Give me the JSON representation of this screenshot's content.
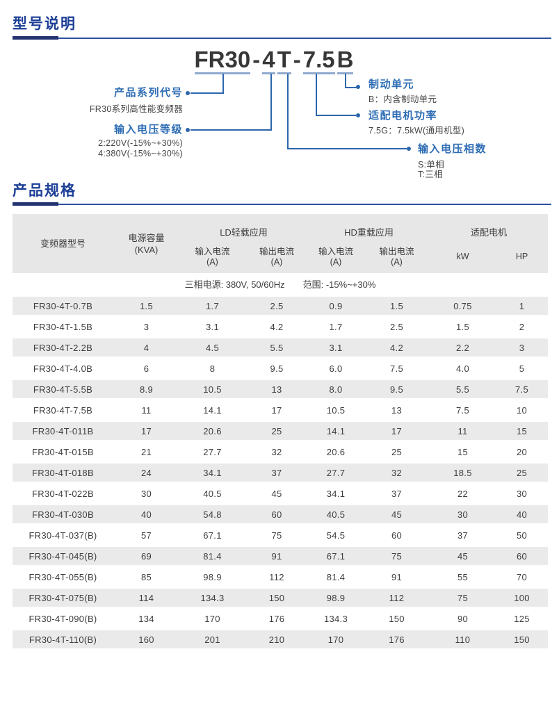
{
  "sections": {
    "model_desc_title": "型号说明",
    "specs_title": "产品规格"
  },
  "model_diagram": {
    "model_number": "FR30-4T-7.5B",
    "model_parts": [
      {
        "t": "FR30",
        "u": true
      },
      {
        "t": "-",
        "u": false
      },
      {
        "t": "4",
        "u": true
      },
      {
        "t": "T",
        "u": true
      },
      {
        "t": "-",
        "u": false
      },
      {
        "t": "7.5",
        "u": true
      },
      {
        "t": "B",
        "u": true
      }
    ],
    "series": {
      "title": "产品系列代号",
      "desc": "FR30系列高性能变频器"
    },
    "voltage": {
      "title": "输入电压等级",
      "desc1": "2:220V(-15%~+30%)",
      "desc2": "4:380V(-15%~+30%)"
    },
    "brake": {
      "title": "制动单元",
      "desc": "B：内含制动单元"
    },
    "power": {
      "title": "适配电机功率",
      "desc": "7.5G：7.5kW(通用机型)"
    },
    "phase": {
      "title": "输入电压相数",
      "desc1": "S:单相",
      "desc2": "T:三相"
    }
  },
  "table": {
    "headers": {
      "model": "变频器型号",
      "capacity_line1": "电源容量",
      "capacity_line2": "(KVA)",
      "ld_group": "LD轻载应用",
      "hd_group": "HD重载应用",
      "motor_group": "适配电机",
      "input_current": "输入电流",
      "output_current": "输出电流",
      "amp": "(A)",
      "kw": "kW",
      "hp": "HP"
    },
    "note": {
      "left": "三相电源: 380V, 50/60Hz",
      "right": "范围: -15%~+30%"
    },
    "rows": [
      [
        "FR30-4T-0.7B",
        "1.5",
        "1.7",
        "2.5",
        "0.9",
        "1.5",
        "0.75",
        "1"
      ],
      [
        "FR30-4T-1.5B",
        "3",
        "3.1",
        "4.2",
        "1.7",
        "2.5",
        "1.5",
        "2"
      ],
      [
        "FR30-4T-2.2B",
        "4",
        "4.5",
        "5.5",
        "3.1",
        "4.2",
        "2.2",
        "3"
      ],
      [
        "FR30-4T-4.0B",
        "6",
        "8",
        "9.5",
        "6.0",
        "7.5",
        "4.0",
        "5"
      ],
      [
        "FR30-4T-5.5B",
        "8.9",
        "10.5",
        "13",
        "8.0",
        "9.5",
        "5.5",
        "7.5"
      ],
      [
        "FR30-4T-7.5B",
        "11",
        "14.1",
        "17",
        "10.5",
        "13",
        "7.5",
        "10"
      ],
      [
        "FR30-4T-011B",
        "17",
        "20.6",
        "25",
        "14.1",
        "17",
        "11",
        "15"
      ],
      [
        "FR30-4T-015B",
        "21",
        "27.7",
        "32",
        "20.6",
        "25",
        "15",
        "20"
      ],
      [
        "FR30-4T-018B",
        "24",
        "34.1",
        "37",
        "27.7",
        "32",
        "18.5",
        "25"
      ],
      [
        "FR30-4T-022B",
        "30",
        "40.5",
        "45",
        "34.1",
        "37",
        "22",
        "30"
      ],
      [
        "FR30-4T-030B",
        "40",
        "54.8",
        "60",
        "40.5",
        "45",
        "30",
        "40"
      ],
      [
        "FR30-4T-037(B)",
        "57",
        "67.1",
        "75",
        "54.5",
        "60",
        "37",
        "50"
      ],
      [
        "FR30-4T-045(B)",
        "69",
        "81.4",
        "91",
        "67.1",
        "75",
        "45",
        "60"
      ],
      [
        "FR30-4T-055(B)",
        "85",
        "98.9",
        "112",
        "81.4",
        "91",
        "55",
        "70"
      ],
      [
        "FR30-4T-075(B)",
        "114",
        "134.3",
        "150",
        "98.9",
        "112",
        "75",
        "100"
      ],
      [
        "FR30-4T-090(B)",
        "134",
        "170",
        "176",
        "134.3",
        "150",
        "90",
        "125"
      ],
      [
        "FR30-4T-110(B)",
        "160",
        "201",
        "210",
        "170",
        "176",
        "110",
        "150"
      ]
    ]
  },
  "colors": {
    "section_title_blue": "#1c3e96",
    "rule_navy": "#253471",
    "rule_blue": "#2d4f9f",
    "diagram_label_blue": "#2e6db4",
    "connector_blue": "#2d66ac",
    "model_underline_blue": "#8fa9cd",
    "stripe_gray": "#eaeaea",
    "header_gray": "#e7e7e7",
    "text_dark": "#3d3d3d"
  }
}
